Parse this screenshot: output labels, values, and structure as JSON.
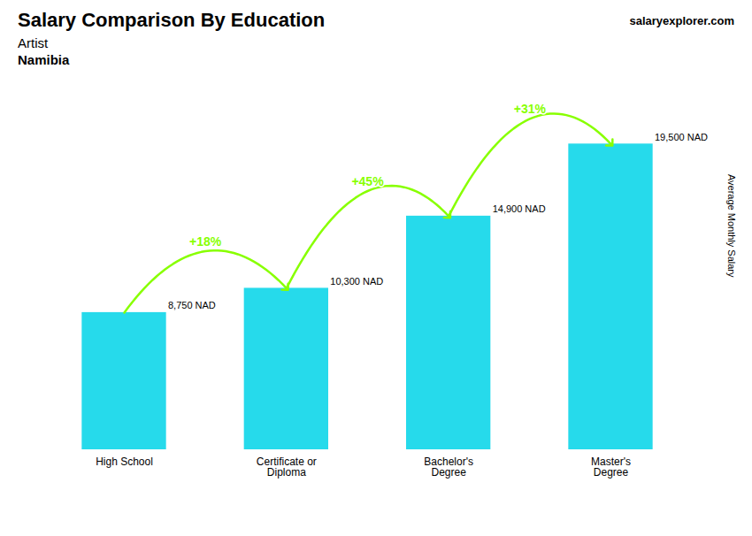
{
  "chart_data": {
    "type": "bar",
    "title": "Salary Comparison By Education",
    "subtitle": [
      "Artist",
      "Namibia"
    ],
    "watermark": "salaryexplorer.com",
    "ylabel": "Average Monthly Salary",
    "categories": [
      "High School",
      "Certificate or\nDiploma",
      "Bachelor's\nDegree",
      "Master's\nDegree"
    ],
    "values": [
      8750,
      10300,
      14900,
      19500
    ],
    "value_labels": [
      "8,750 NAD",
      "10,300 NAD",
      "14,900 NAD",
      "19,500 NAD"
    ],
    "data_labels": true,
    "color": "#00d4e8",
    "ylim": [
      0,
      22000
    ],
    "tick_labels": "x",
    "annotations": [
      {
        "text": "+18%",
        "color": "#88ff00"
      },
      {
        "text": "+45%",
        "color": "#88ff00"
      },
      {
        "text": "+31%",
        "color": "#88ff00"
      }
    ]
  }
}
